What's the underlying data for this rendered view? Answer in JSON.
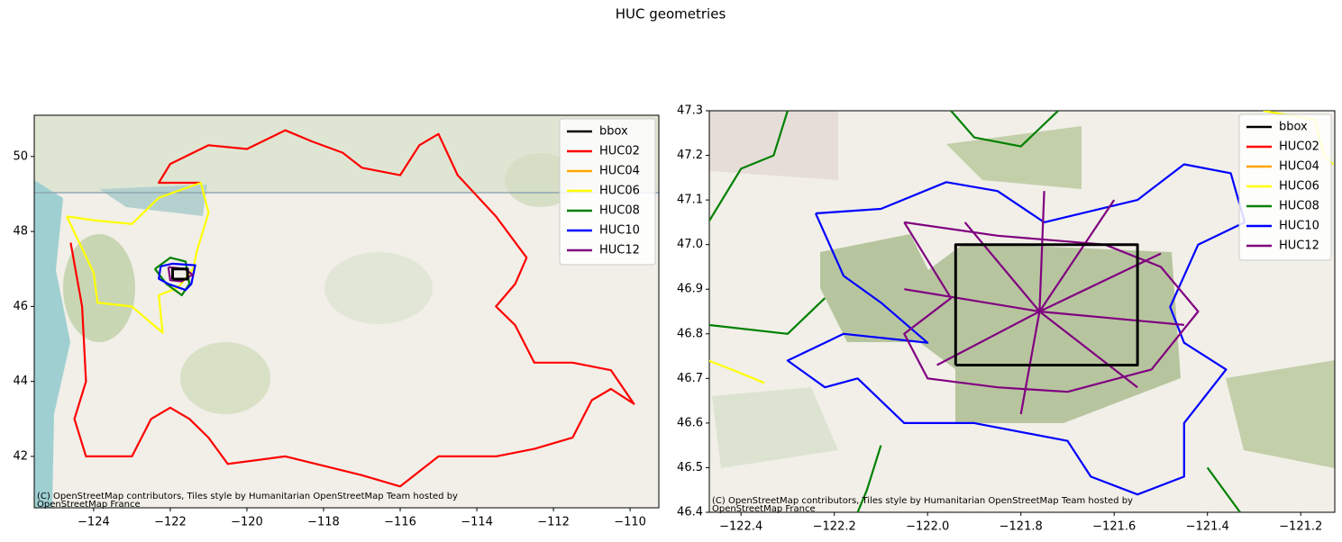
{
  "title": "HUC geometries",
  "chart_data": [
    {
      "type": "line",
      "xlim": [
        -125.55,
        -109.25
      ],
      "ylim": [
        40.63,
        51.1
      ],
      "xticks": [
        {
          "value": -124,
          "label": "−124"
        },
        {
          "value": -122,
          "label": "−122"
        },
        {
          "value": -120,
          "label": "−120"
        },
        {
          "value": -118,
          "label": "−118"
        },
        {
          "value": -116,
          "label": "−116"
        },
        {
          "value": -114,
          "label": "−114"
        },
        {
          "value": -112,
          "label": "−112"
        },
        {
          "value": -110,
          "label": "−110"
        }
      ],
      "yticks": [
        42,
        44,
        46,
        48,
        50
      ],
      "legend": "upper right",
      "attribution": "(C) OpenStreetMap contributors, Tiles style by Humanitarian OpenStreetMap Team hosted by OpenStreetMap France",
      "series": [
        {
          "name": "bbox",
          "color": "#000000",
          "x": [
            -121.94,
            -121.55,
            -121.55,
            -121.94,
            -121.94
          ],
          "y": [
            46.73,
            46.73,
            47.0,
            47.0,
            46.73
          ]
        },
        {
          "name": "HUC02",
          "color": "#ff0000",
          "x": [
            -124.6,
            -124.3,
            -124.2,
            -124.5,
            -124.2,
            -123.0,
            -122.5,
            -122.0,
            -121.5,
            -121.0,
            -120.5,
            -119.0,
            -117.0,
            -116.0,
            -115.0,
            -113.5,
            -112.5,
            -111.5,
            -111.0,
            -110.5,
            -109.9,
            -110.5,
            -111.5,
            -112.5,
            -113.0,
            -113.5,
            -113.0,
            -112.7,
            -113.5,
            -114.5,
            -115.0,
            -115.5,
            -116.0,
            -117.0,
            -117.5,
            -118.3,
            -119.0,
            -120.0,
            -121.0,
            -122.0,
            -122.3,
            -121.2
          ],
          "y": [
            47.7,
            46.0,
            44.0,
            43.0,
            42.0,
            42.0,
            43.0,
            43.3,
            43.0,
            42.5,
            41.8,
            42.0,
            41.5,
            41.2,
            42.0,
            42.0,
            42.2,
            42.5,
            43.5,
            43.8,
            43.4,
            44.3,
            44.5,
            44.5,
            45.5,
            46.0,
            46.6,
            47.3,
            48.4,
            49.5,
            50.6,
            50.3,
            49.5,
            49.7,
            50.1,
            50.4,
            50.7,
            50.2,
            50.3,
            49.8,
            49.3,
            49.3
          ]
        },
        {
          "name": "HUC04",
          "color": "#ffa500",
          "x": [],
          "y": []
        },
        {
          "name": "HUC06",
          "color": "#ffff00",
          "x": [
            -124.7,
            -124.0,
            -123.0,
            -122.3,
            -121.2,
            -121.0,
            -121.3,
            -121.4,
            -121.8,
            -122.3,
            -122.2,
            -123.0,
            -123.9,
            -124.0,
            -124.7
          ],
          "y": [
            48.4,
            48.3,
            48.2,
            48.9,
            49.3,
            48.5,
            47.5,
            47.0,
            46.5,
            46.3,
            45.3,
            46.0,
            46.1,
            46.9,
            48.4
          ]
        },
        {
          "name": "HUC08",
          "color": "#008000",
          "x": [
            -122.4,
            -122.0,
            -121.6,
            -121.5,
            -121.7,
            -122.1,
            -122.4
          ],
          "y": [
            47.0,
            47.3,
            47.2,
            46.6,
            46.3,
            46.6,
            47.0
          ]
        },
        {
          "name": "HUC10",
          "color": "#0000ff",
          "x": [
            -122.25,
            -121.95,
            -121.35,
            -121.45,
            -121.6,
            -122.05,
            -122.3,
            -122.25
          ],
          "y": [
            47.07,
            47.14,
            47.1,
            46.6,
            46.44,
            46.6,
            46.74,
            47.07
          ]
        },
        {
          "name": "HUC12",
          "color": "#800080",
          "x": [
            -122.05,
            -121.62,
            -121.42,
            -121.7,
            -122.0,
            -122.05
          ],
          "y": [
            47.05,
            47.0,
            46.85,
            46.67,
            46.7,
            47.05
          ]
        }
      ]
    },
    {
      "type": "line",
      "xlim": [
        -122.468,
        -121.127
      ],
      "ylim": [
        46.4,
        47.3
      ],
      "xticks": [
        {
          "value": -122.4,
          "label": "−122.4"
        },
        {
          "value": -122.2,
          "label": "−122.2"
        },
        {
          "value": -122.0,
          "label": "−122.0"
        },
        {
          "value": -121.8,
          "label": "−121.8"
        },
        {
          "value": -121.6,
          "label": "−121.6"
        },
        {
          "value": -121.4,
          "label": "−121.4"
        },
        {
          "value": -121.2,
          "label": "−121.2"
        }
      ],
      "yticks": [
        46.4,
        46.5,
        46.6,
        46.7,
        46.8,
        46.9,
        {
          "value": 47.0,
          "label": "47.0"
        },
        47.1,
        47.2,
        47.3
      ],
      "legend": "upper right",
      "attribution": "(C) OpenStreetMap contributors, Tiles style by Humanitarian OpenStreetMap Team hosted by OpenStreetMap France",
      "series": [
        {
          "name": "bbox",
          "color": "#000000",
          "x": [
            -121.94,
            -121.55,
            -121.55,
            -121.94,
            -121.94
          ],
          "y": [
            46.73,
            46.73,
            47.0,
            47.0,
            46.73
          ]
        },
        {
          "name": "HUC02",
          "color": "#ff0000",
          "x": [],
          "y": []
        },
        {
          "name": "HUC04",
          "color": "#ffa500",
          "x": [],
          "y": []
        },
        {
          "name": "HUC06",
          "color": "#ffff00",
          "x": [
            -122.47,
            -122.42,
            -122.35,
            null,
            -121.28,
            -121.17,
            -121.15,
            -121.13
          ],
          "y": [
            46.74,
            46.72,
            46.69,
            null,
            47.3,
            47.28,
            47.2,
            47.18
          ]
        },
        {
          "name": "HUC08",
          "color": "#008000",
          "x": [
            -122.47,
            -122.3,
            -122.22,
            null,
            -122.47,
            -122.4,
            -122.33,
            -122.3,
            null,
            -122.1,
            -122.13,
            -122.15,
            null,
            -121.4,
            -121.33,
            null,
            -121.95,
            -121.9,
            -121.8,
            -121.72
          ],
          "y": [
            46.82,
            46.8,
            46.88,
            null,
            47.05,
            47.17,
            47.2,
            47.3,
            null,
            46.55,
            46.45,
            46.4,
            null,
            46.5,
            46.4,
            null,
            47.3,
            47.24,
            47.22,
            47.3
          ]
        },
        {
          "name": "HUC10",
          "color": "#0000ff",
          "x": [
            -122.24,
            -122.1,
            -121.96,
            -121.85,
            -121.75,
            -121.55,
            -121.45,
            -121.35,
            -121.32,
            -121.42,
            -121.48,
            -121.45,
            -121.36,
            -121.45,
            -121.45,
            -121.55,
            -121.65,
            -121.7,
            -121.9,
            -122.05,
            -122.15,
            -122.22,
            -122.3,
            -122.18,
            -122.0,
            -122.1,
            -122.18,
            -122.24
          ],
          "y": [
            47.07,
            47.08,
            47.14,
            47.12,
            47.05,
            47.1,
            47.18,
            47.16,
            47.05,
            47.0,
            46.86,
            46.78,
            46.72,
            46.6,
            46.48,
            46.44,
            46.48,
            46.56,
            46.6,
            46.6,
            46.7,
            46.68,
            46.74,
            46.8,
            46.78,
            46.87,
            46.93,
            47.07
          ]
        },
        {
          "name": "HUC12",
          "color": "#800080",
          "x": [
            -122.05,
            -121.85,
            -121.62,
            -121.5,
            -121.42,
            -121.52,
            -121.7,
            -121.85,
            -122.0,
            -122.05,
            -121.95,
            -122.05,
            null,
            -121.76,
            -121.92,
            null,
            -121.76,
            -121.75,
            null,
            -121.76,
            -121.6,
            null,
            -121.76,
            -121.5,
            null,
            -121.76,
            -121.45,
            null,
            -121.76,
            -121.55,
            null,
            -121.76,
            -121.8,
            null,
            -121.76,
            -121.98,
            null,
            -121.76,
            -122.05
          ],
          "y": [
            47.05,
            47.02,
            47.0,
            46.95,
            46.85,
            46.72,
            46.67,
            46.68,
            46.7,
            46.8,
            46.88,
            47.05,
            null,
            46.85,
            47.05,
            null,
            46.85,
            47.12,
            null,
            46.85,
            47.1,
            null,
            46.85,
            46.98,
            null,
            46.85,
            46.82,
            null,
            46.85,
            46.68,
            null,
            46.85,
            46.62,
            null,
            46.85,
            46.73,
            null,
            46.85,
            46.9
          ]
        }
      ]
    }
  ]
}
